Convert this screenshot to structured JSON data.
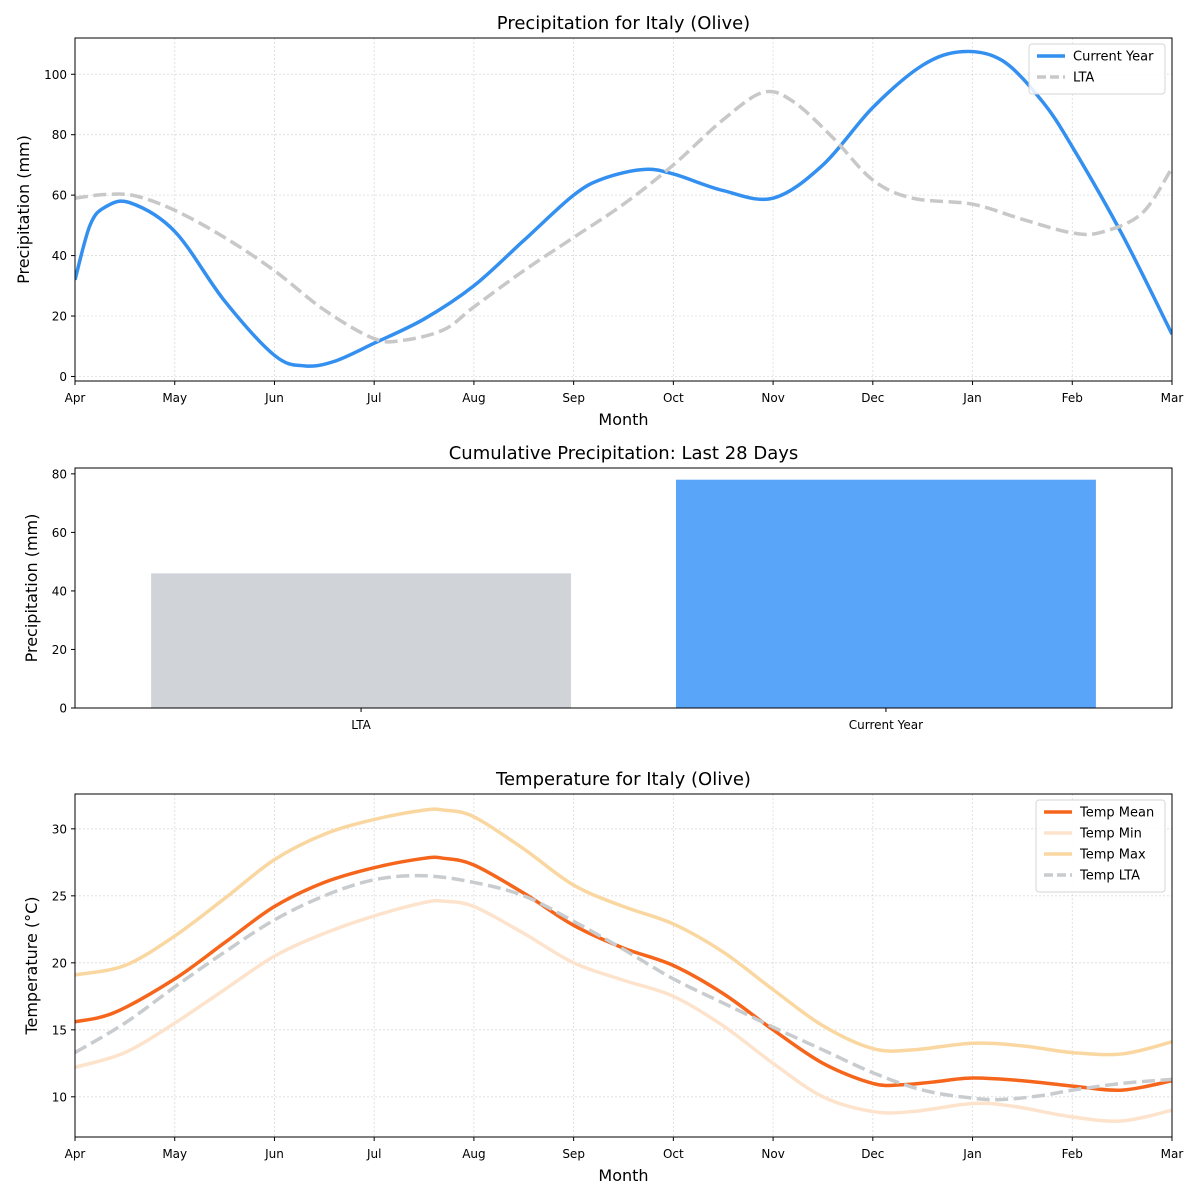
{
  "colors": {
    "current": "#3390f0",
    "lta": "#c8c8c8",
    "bar_lta": "#d0d4d8",
    "bar_current": "#59a5fa",
    "temp_mean": "#f5661c",
    "temp_min": "#fde3cc",
    "temp_max": "#fad7a0",
    "temp_lta": "#c8ccce"
  },
  "chart_data": [
    {
      "type": "line",
      "title": "Precipitation for Italy (Olive)",
      "xlabel": "Month",
      "ylabel": "Precipitation (mm)",
      "categories": [
        "Apr",
        "May",
        "Jun",
        "Jul",
        "Aug",
        "Sep",
        "Oct",
        "Nov",
        "Dec",
        "Jan",
        "Feb",
        "Mar"
      ],
      "ylim": [
        -1.5,
        112
      ],
      "yticks": [
        0,
        20,
        40,
        60,
        80,
        100
      ],
      "grid": true,
      "legend_position": "top-right",
      "series": [
        {
          "name": "Current Year",
          "color_key": "current",
          "dashed": false,
          "points": [
            [
              0,
              32
            ],
            [
              0.15,
              50
            ],
            [
              0.3,
              56
            ],
            [
              0.55,
              57.5
            ],
            [
              1,
              48
            ],
            [
              1.5,
              25
            ],
            [
              2,
              7
            ],
            [
              2.3,
              3.5
            ],
            [
              2.6,
              5
            ],
            [
              3,
              11
            ],
            [
              3.5,
              19
            ],
            [
              4,
              30
            ],
            [
              4.5,
              45
            ],
            [
              5,
              60
            ],
            [
              5.3,
              65.5
            ],
            [
              5.7,
              68.5
            ],
            [
              6,
              67
            ],
            [
              6.5,
              61.5
            ],
            [
              7,
              59
            ],
            [
              7.5,
              70
            ],
            [
              8,
              89
            ],
            [
              8.5,
              103
            ],
            [
              8.9,
              107.5
            ],
            [
              9.3,
              104.5
            ],
            [
              9.7,
              91
            ],
            [
              10,
              76
            ],
            [
              10.5,
              47
            ],
            [
              11,
              14
            ]
          ]
        },
        {
          "name": "LTA",
          "color_key": "lta",
          "dashed": true,
          "points": [
            [
              0,
              59
            ],
            [
              0.3,
              60.2
            ],
            [
              0.6,
              59.8
            ],
            [
              1,
              55
            ],
            [
              1.5,
              46
            ],
            [
              2,
              35
            ],
            [
              2.5,
              22
            ],
            [
              3,
              12.5
            ],
            [
              3.3,
              12
            ],
            [
              3.7,
              15.5
            ],
            [
              4,
              23
            ],
            [
              4.5,
              35
            ],
            [
              5,
              46
            ],
            [
              5.5,
              57
            ],
            [
              6,
              70
            ],
            [
              6.5,
              85
            ],
            [
              6.9,
              94
            ],
            [
              7.2,
              91
            ],
            [
              7.6,
              79
            ],
            [
              8,
              65
            ],
            [
              8.4,
              59
            ],
            [
              9,
              57
            ],
            [
              9.5,
              52
            ],
            [
              10,
              47.5
            ],
            [
              10.3,
              47.8
            ],
            [
              10.7,
              54
            ],
            [
              11,
              69
            ]
          ]
        }
      ]
    },
    {
      "type": "bar",
      "title": "Cumulative Precipitation: Last 28 Days",
      "xlabel": "",
      "ylabel": "Precipitation (mm)",
      "categories": [
        "LTA",
        "Current Year"
      ],
      "values": [
        46,
        78
      ],
      "bar_color_keys": [
        "bar_lta",
        "bar_current"
      ],
      "ylim": [
        0,
        82
      ],
      "yticks": [
        0,
        20,
        40,
        60,
        80
      ],
      "grid": false
    },
    {
      "type": "line",
      "title": "Temperature for Italy (Olive)",
      "xlabel": "Month",
      "ylabel": "Temperature (°C)",
      "categories": [
        "Apr",
        "May",
        "Jun",
        "Jul",
        "Aug",
        "Sep",
        "Oct",
        "Nov",
        "Dec",
        "Jan",
        "Feb",
        "Mar"
      ],
      "ylim": [
        7,
        32.6
      ],
      "yticks": [
        10,
        15,
        20,
        25,
        30
      ],
      "grid": true,
      "legend_position": "top-right",
      "series": [
        {
          "name": "Temp Mean",
          "color_key": "temp_mean",
          "dashed": false,
          "points": [
            [
              0,
              15.6
            ],
            [
              0.4,
              16.3
            ],
            [
              1,
              18.8
            ],
            [
              1.5,
              21.5
            ],
            [
              2,
              24.2
            ],
            [
              2.5,
              26
            ],
            [
              3,
              27.1
            ],
            [
              3.5,
              27.8
            ],
            [
              3.7,
              27.8
            ],
            [
              4,
              27.3
            ],
            [
              4.5,
              25.2
            ],
            [
              5,
              22.8
            ],
            [
              5.5,
              21.1
            ],
            [
              6,
              19.8
            ],
            [
              6.5,
              17.7
            ],
            [
              7,
              15
            ],
            [
              7.5,
              12.5
            ],
            [
              8,
              11
            ],
            [
              8.3,
              10.9
            ],
            [
              8.6,
              11.1
            ],
            [
              9,
              11.4
            ],
            [
              9.5,
              11.2
            ],
            [
              10,
              10.8
            ],
            [
              10.5,
              10.5
            ],
            [
              11,
              11.2
            ]
          ]
        },
        {
          "name": "Temp Min",
          "color_key": "temp_min",
          "dashed": false,
          "points": [
            [
              0,
              12.2
            ],
            [
              0.5,
              13.3
            ],
            [
              1,
              15.5
            ],
            [
              1.5,
              18
            ],
            [
              2,
              20.5
            ],
            [
              2.5,
              22.2
            ],
            [
              3,
              23.5
            ],
            [
              3.5,
              24.5
            ],
            [
              3.7,
              24.6
            ],
            [
              4,
              24.2
            ],
            [
              4.5,
              22.2
            ],
            [
              5,
              20
            ],
            [
              5.5,
              18.7
            ],
            [
              6,
              17.5
            ],
            [
              6.5,
              15.3
            ],
            [
              7,
              12.5
            ],
            [
              7.5,
              10
            ],
            [
              8,
              8.9
            ],
            [
              8.4,
              8.9
            ],
            [
              9,
              9.5
            ],
            [
              9.4,
              9.3
            ],
            [
              10,
              8.5
            ],
            [
              10.5,
              8.2
            ],
            [
              11,
              9
            ]
          ]
        },
        {
          "name": "Temp Max",
          "color_key": "temp_max",
          "dashed": false,
          "points": [
            [
              0,
              19.1
            ],
            [
              0.5,
              19.8
            ],
            [
              1,
              22
            ],
            [
              1.5,
              24.8
            ],
            [
              2,
              27.7
            ],
            [
              2.5,
              29.6
            ],
            [
              3,
              30.7
            ],
            [
              3.5,
              31.4
            ],
            [
              3.7,
              31.4
            ],
            [
              4,
              30.9
            ],
            [
              4.5,
              28.5
            ],
            [
              5,
              25.8
            ],
            [
              5.5,
              24.2
            ],
            [
              6,
              22.9
            ],
            [
              6.5,
              20.8
            ],
            [
              7,
              18
            ],
            [
              7.5,
              15.3
            ],
            [
              8,
              13.6
            ],
            [
              8.4,
              13.5
            ],
            [
              9,
              14
            ],
            [
              9.5,
              13.8
            ],
            [
              10,
              13.3
            ],
            [
              10.5,
              13.2
            ],
            [
              11,
              14.1
            ]
          ]
        },
        {
          "name": "Temp LTA",
          "color_key": "temp_lta",
          "dashed": true,
          "points": [
            [
              0,
              13.3
            ],
            [
              0.5,
              15.5
            ],
            [
              1,
              18.2
            ],
            [
              1.5,
              20.8
            ],
            [
              2,
              23.2
            ],
            [
              2.5,
              25
            ],
            [
              3,
              26.2
            ],
            [
              3.5,
              26.5
            ],
            [
              4,
              26
            ],
            [
              4.5,
              25
            ],
            [
              5,
              23.1
            ],
            [
              5.5,
              21
            ],
            [
              6,
              18.8
            ],
            [
              6.5,
              17
            ],
            [
              7,
              15.2
            ],
            [
              7.5,
              13.5
            ],
            [
              8,
              11.8
            ],
            [
              8.5,
              10.5
            ],
            [
              9,
              9.9
            ],
            [
              9.3,
              9.8
            ],
            [
              9.7,
              10.1
            ],
            [
              10,
              10.5
            ],
            [
              10.5,
              11
            ],
            [
              11,
              11.3
            ]
          ]
        }
      ]
    }
  ]
}
